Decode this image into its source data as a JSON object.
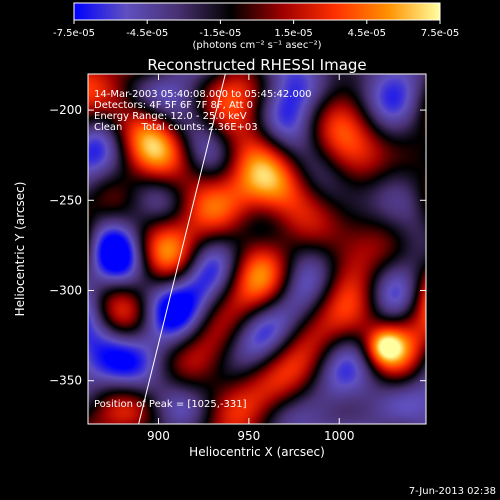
{
  "colorbar": {
    "ticks": [
      "-7.5e-05",
      "-4.5e-05",
      "-1.5e-05",
      "1.5e-05",
      "4.5e-05",
      "7.5e-05"
    ],
    "tick_values": [
      -7.5e-05,
      -4.5e-05,
      -1.5e-05,
      1.5e-05,
      4.5e-05,
      7.5e-05
    ],
    "range": [
      -7.5e-05,
      7.5e-05
    ],
    "units": "(photons cm⁻² s⁻¹ asec⁻²)"
  },
  "chart_data": {
    "type": "heatmap",
    "title": "Reconstructed RHESSI Image",
    "xlabel": "Heliocentric X (arcsec)",
    "ylabel": "Heliocentric Y (arcsec)",
    "xlim": [
      861,
      1048
    ],
    "ylim": [
      -374,
      -180
    ],
    "xticks": [
      900,
      950,
      1000
    ],
    "yticks": [
      -350,
      -300,
      -250,
      -200
    ],
    "xtick_labels": [
      "900",
      "950",
      "1000"
    ],
    "ytick_labels": [
      "−350",
      "−300",
      "−250",
      "−200"
    ],
    "peak": [
      1025,
      -331
    ],
    "limb_line": [
      [
        889,
        -374
      ],
      [
        937,
        -180
      ]
    ],
    "colormap": [
      "#0000ff",
      "#6050c0",
      "#483070",
      "#000000",
      "#a00000",
      "#ff3000",
      "#ff9000",
      "#ffffa0"
    ],
    "annotations": [
      "14-Mar-2003 05:40:08.000 to 05:45:42.000",
      "Detectors: 4F 5F 6F 7F 8F, Att 0",
      "Energy Range: 12.0 - 25.0 keV",
      "Clean      Total counts: 2.36E+03"
    ],
    "peak_label": "Position of Peak = [1025,-331]"
  },
  "footer": {
    "timestamp": "7-Jun-2013 02:38"
  }
}
